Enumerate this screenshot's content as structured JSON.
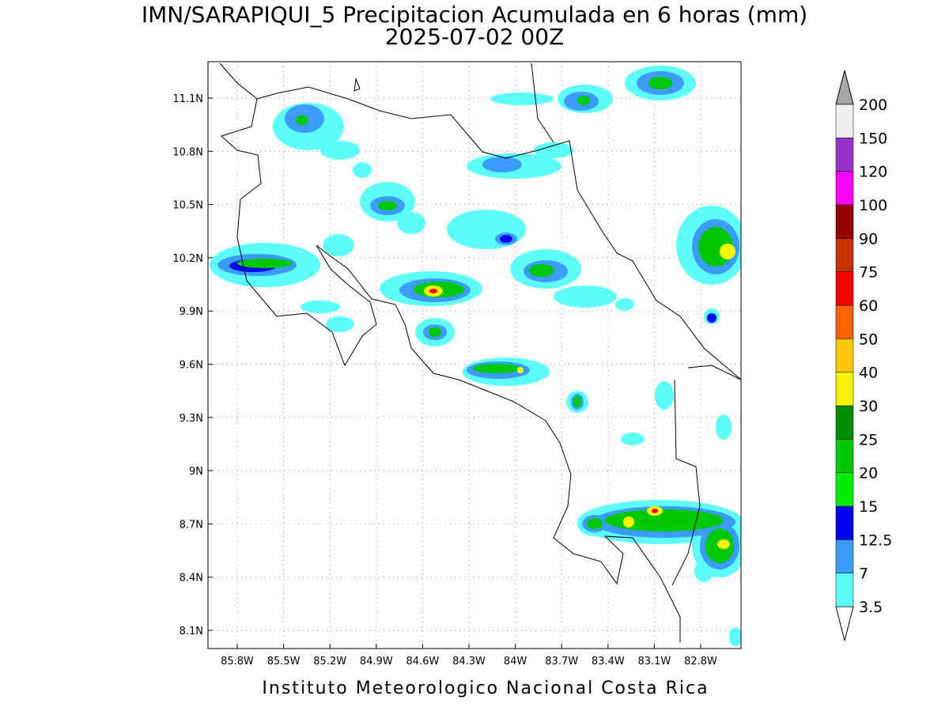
{
  "title": "IMN/SARAPIQUI_5 Precipitacion Acumulada en 6 horas (mm)",
  "subtitle": "2025-07-02 00Z",
  "map": {
    "lat_labels": [
      "11.1N",
      "10.8N",
      "10.5N",
      "10.2N",
      "9.9N",
      "9.6N",
      "9.3N",
      "9N",
      "8.7N",
      "8.4N",
      "8.1N"
    ],
    "lon_labels": [
      "85.8W",
      "85.5W",
      "85.2W",
      "84.9W",
      "84.6W",
      "84.3W",
      "84W",
      "83.7W",
      "83.4W",
      "83.1W",
      "82.8W"
    ]
  },
  "colorbar": {
    "labels": [
      3.5,
      7,
      12.5,
      15,
      20,
      25,
      30,
      40,
      50,
      60,
      75,
      90,
      100,
      120,
      150,
      200
    ],
    "colors": [
      "#5ffcfc",
      "#3c9cfc",
      "#0000f0",
      "#00f000",
      "#00c800",
      "#008c00",
      "#f5f500",
      "#fcc800",
      "#fc6400",
      "#fa0000",
      "#c83200",
      "#960000",
      "#fc00fc",
      "#9632c8",
      "#f0f0f0"
    ]
  },
  "footer": "Instituto Meteorologico Nacional Costa Rica"
}
